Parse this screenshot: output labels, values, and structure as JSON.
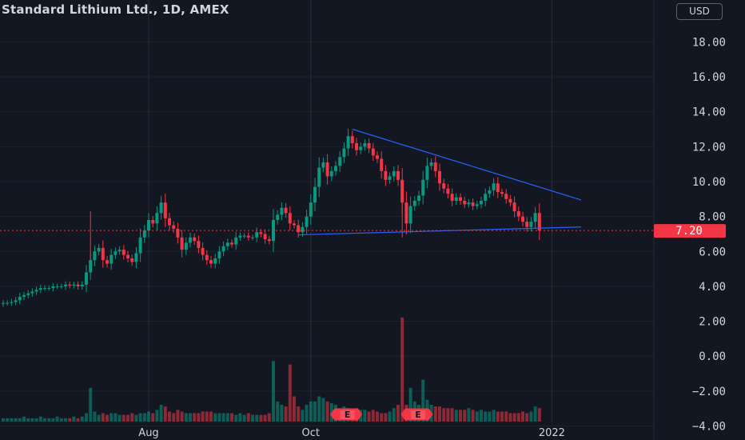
{
  "header": {
    "title": "Standard Lithium Ltd., 1D, AMEX",
    "currency": "USD"
  },
  "last_price": {
    "value": 7.2,
    "label": "7.20",
    "color": "#f23645"
  },
  "colors": {
    "up": "#089981",
    "down": "#f23645",
    "trendline": "#2962ff",
    "background": "#131722",
    "grid": "#2a2e39"
  },
  "earnings_markers": [
    {
      "label": "E",
      "date": "2021-10-21"
    },
    {
      "label": "E",
      "date": "2021-11-15"
    }
  ],
  "chart_data": {
    "type": "candlestick",
    "title": "Standard Lithium Ltd., 1D, AMEX",
    "x_tick_labels": [
      "Aug",
      "Oct",
      "2022"
    ],
    "y_tick_labels": [
      "18.00",
      "16.00",
      "14.00",
      "12.00",
      "10.00",
      "8.00",
      "6.00",
      "4.00",
      "2.00",
      "0.00",
      "−2.00",
      "−4.00"
    ],
    "y_range": [
      -4.8,
      20.4
    ],
    "close_series": [
      3.05,
      3.05,
      3.1,
      3.2,
      3.4,
      3.5,
      3.6,
      3.7,
      3.8,
      3.9,
      3.9,
      3.9,
      4.0,
      4.0,
      4.0,
      4.1,
      4.05,
      4.1,
      4.0,
      4.1,
      4.8,
      5.5,
      6.0,
      6.2,
      5.5,
      5.3,
      5.8,
      6.0,
      6.1,
      5.8,
      5.6,
      5.4,
      5.9,
      6.8,
      7.2,
      7.8,
      7.6,
      8.2,
      8.8,
      7.9,
      7.5,
      7.3,
      6.8,
      6.1,
      6.5,
      6.8,
      6.6,
      6.2,
      5.8,
      5.5,
      5.3,
      5.6,
      6.0,
      6.3,
      6.5,
      6.4,
      6.8,
      6.9,
      6.9,
      6.8,
      6.8,
      7.1,
      7.0,
      6.7,
      6.6,
      7.8,
      8.1,
      8.5,
      8.2,
      7.6,
      7.5,
      7.1,
      7.4,
      8.0,
      8.8,
      9.7,
      10.8,
      11.1,
      10.3,
      10.6,
      10.9,
      11.4,
      11.9,
      12.6,
      12.2,
      11.8,
      12.0,
      12.2,
      11.9,
      11.5,
      11.3,
      10.6,
      10.1,
      10.3,
      10.6,
      10.1,
      8.8,
      7.6,
      8.6,
      8.9,
      9.2,
      10.1,
      10.9,
      11.1,
      10.6,
      9.9,
      9.6,
      9.3,
      8.9,
      9.1,
      8.9,
      8.7,
      8.8,
      8.6,
      8.7,
      8.9,
      9.3,
      9.5,
      9.9,
      9.4,
      9.3,
      9.0,
      8.8,
      8.3,
      8.0,
      7.7,
      7.4,
      7.7,
      8.2,
      7.2
    ],
    "volume_series": [
      0.2,
      0.2,
      0.2,
      0.2,
      0.2,
      0.3,
      0.2,
      0.2,
      0.2,
      0.3,
      0.2,
      0.2,
      0.2,
      0.3,
      0.2,
      0.2,
      0.2,
      0.3,
      0.2,
      0.3,
      0.5,
      2.0,
      0.6,
      0.4,
      0.5,
      0.4,
      0.5,
      0.5,
      0.4,
      0.4,
      0.4,
      0.5,
      0.4,
      0.5,
      0.5,
      0.6,
      0.5,
      0.7,
      1.0,
      0.9,
      0.6,
      0.5,
      0.7,
      0.6,
      0.5,
      0.5,
      0.5,
      0.5,
      0.6,
      0.6,
      0.6,
      0.5,
      0.5,
      0.5,
      0.5,
      0.5,
      0.4,
      0.5,
      0.4,
      0.5,
      0.4,
      0.4,
      0.4,
      0.4,
      0.5,
      3.6,
      1.2,
      1.0,
      0.9,
      3.4,
      1.5,
      0.9,
      0.7,
      1.0,
      1.2,
      1.2,
      1.5,
      1.4,
      1.2,
      1.1,
      1.0,
      0.8,
      0.9,
      0.8,
      0.7,
      0.8,
      0.7,
      0.7,
      0.6,
      0.7,
      0.6,
      0.5,
      0.5,
      0.6,
      0.8,
      1.0,
      6.2,
      1.0,
      2.0,
      1.2,
      1.0,
      2.5,
      1.3,
      1.0,
      0.9,
      0.9,
      0.8,
      0.8,
      0.8,
      0.7,
      0.7,
      0.7,
      0.8,
      0.7,
      0.6,
      0.7,
      0.6,
      0.6,
      0.7,
      0.6,
      0.6,
      0.6,
      0.5,
      0.5,
      0.5,
      0.6,
      0.5,
      0.6,
      0.9,
      0.8
    ],
    "trendlines": [
      {
        "from": {
          "bar": 84,
          "price": 13.0
        },
        "to": {
          "bar": 139,
          "price": 8.95
        }
      },
      {
        "from": {
          "bar": 71,
          "price": 6.95
        },
        "to": {
          "bar": 139,
          "price": 7.4
        }
      }
    ]
  }
}
